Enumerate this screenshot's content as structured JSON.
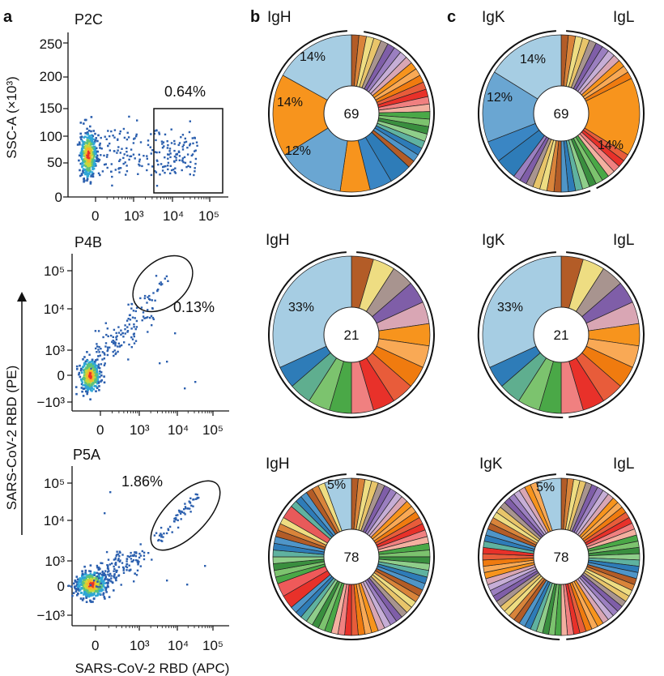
{
  "panels": {
    "a": "a",
    "b": "b",
    "c": "c"
  },
  "flow": {
    "y_axis_label": "SARS-CoV-2 RBD (PE)",
    "x_axis_label": "SARS-CoV-2 RBD (APC)",
    "x_ticks": [
      "0",
      "10³",
      "10⁴",
      "10⁵"
    ],
    "plots": [
      {
        "title": "P2C",
        "gate_percent": "0.64%",
        "y_label": "SSC-A (×10³)",
        "y_ticks": [
          "0",
          "50",
          "100",
          "150",
          "200",
          "250"
        ]
      },
      {
        "title": "P4B",
        "gate_percent": "0.13%",
        "y_ticks": [
          "−10³",
          "0",
          "10³",
          "10⁴",
          "10⁵"
        ]
      },
      {
        "title": "P5A",
        "gate_percent": "1.86%",
        "y_ticks": [
          "−10³",
          "0",
          "10³",
          "10⁴",
          "10⁵"
        ]
      }
    ]
  },
  "chart_data": [
    {
      "type": "scatter",
      "title": "P2C",
      "xlabel": "SARS-CoV-2 RBD (APC)",
      "ylabel": "SSC-A (×10³)",
      "gate": "0.64%"
    },
    {
      "type": "scatter",
      "title": "P4B",
      "xlabel": "SARS-CoV-2 RBD (APC)",
      "ylabel": "SARS-CoV-2 RBD (PE)",
      "gate": "0.13%"
    },
    {
      "type": "scatter",
      "title": "P5A",
      "xlabel": "SARS-CoV-2 RBD (APC)",
      "ylabel": "SARS-CoV-2 RBD (PE)",
      "gate": "1.86%"
    },
    {
      "type": "pie",
      "title": "IgH",
      "total": 69,
      "labeled_slices": [
        "14%",
        "14%",
        "12%"
      ]
    },
    {
      "type": "pie",
      "title": "IgK / IgL",
      "total": 69,
      "labeled_slices": [
        "14%",
        "12%",
        "14%"
      ]
    },
    {
      "type": "pie",
      "title": "IgH",
      "total": 21,
      "labeled_slices": [
        "33%"
      ]
    },
    {
      "type": "pie",
      "title": "IgK / IgL",
      "total": 21,
      "labeled_slices": [
        "33%"
      ]
    },
    {
      "type": "pie",
      "title": "IgH",
      "total": 78,
      "labeled_slices": [
        "5%"
      ]
    },
    {
      "type": "pie",
      "title": "IgK / IgL",
      "total": 78,
      "labeled_slices": [
        "5%"
      ]
    }
  ],
  "pies": [
    {
      "heavy": "IgH",
      "center": "69",
      "kappa": "IgK",
      "lambda": "IgL",
      "heavy_pcts": [
        "14%",
        "14%",
        "12%"
      ],
      "light_pcts": [
        "14%",
        "12%",
        "14%"
      ]
    },
    {
      "heavy": "IgH",
      "center": "21",
      "kappa": "IgK",
      "lambda": "IgL",
      "heavy_pcts": [
        "33%"
      ],
      "light_pcts": [
        "33%"
      ]
    },
    {
      "heavy": "IgH",
      "center": "78",
      "kappa": "IgK",
      "lambda": "IgL",
      "heavy_pcts": [
        "5%"
      ],
      "light_pcts": [
        "5%"
      ]
    }
  ],
  "colors": {
    "light_blue": "#a6cde3",
    "mid_blue": "#6aa6d2",
    "dark_blue": "#2e7cb8",
    "orange": "#f7941d",
    "dark_orange": "#f07b0f",
    "red": "#e03a3c",
    "green": "#4aa847",
    "purple": "#7f5ea8",
    "brown": "#b35c27",
    "yellow": "#eedd82"
  }
}
